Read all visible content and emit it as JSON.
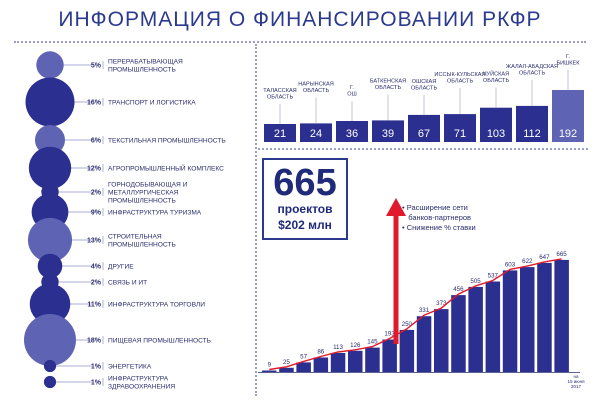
{
  "title": "ИНФОРМАЦИЯ О ФИНАНСИРОВАНИИ РКФР",
  "summary": {
    "projects_number": "665",
    "projects_label": "проектов",
    "amount_prefix": "$",
    "amount_value": "202",
    "amount_unit": "млн"
  },
  "notes": [
    "• Расширение сети",
    "   банков-партнеров",
    "• Снижение % ставки"
  ],
  "colors": {
    "dark": "#2b2f8f",
    "mid": "#5f63b3",
    "light": "#8f93cc",
    "arrow": "#e0192c",
    "accent": "#2b3a8f"
  },
  "chart_data": [
    {
      "type": "bubble",
      "categories": [
        "ПЕРЕРАБАТЫВАЮЩАЯ ПРОМЫШЛЕННОСТЬ",
        "ТРАНСПОРТ И ЛОГИСТИКА",
        "ТЕКСТИЛЬНАЯ ПРОМЫШЛЕННОСТЬ",
        "АГРОПРОМЫШЛЕННЫЙ КОМПЛЕКС",
        "ГОРНОДОБЫВАЮЩАЯ И МЕТАЛЛУРГИЧЕСКАЯ ПРОМЫШЛЕННОСТЬ",
        "ИНФРАСТРУКТУРА ТУРИЗМА",
        "СТРОИТЕЛЬНАЯ ПРОМЫШЛЕННОСТЬ",
        "ДРУГИЕ",
        "СВЯЗЬ И ИТ",
        "ИНФРАСТРУКТУРА ТОРГОВЛИ",
        "ПИЩЕВАЯ ПРОМЫШЛЕННОСТЬ",
        "ЭНЕРГЕТИКА",
        "ИНФРАСТРУКТУРА ЗДРАВООХРАНЕНИЯ"
      ],
      "labels": [
        "5%",
        "16%",
        "6%",
        "12%",
        "2%",
        "9%",
        "13%",
        "4%",
        "2%",
        "11%",
        "18%",
        "1%",
        "1%"
      ],
      "values": [
        5,
        16,
        6,
        12,
        2,
        9,
        13,
        4,
        2,
        11,
        18,
        1,
        1
      ]
    },
    {
      "type": "bar",
      "categories": [
        "ТАЛАССКАЯ ОБЛАСТЬ",
        "НАРЫНСКАЯ ОБЛАСТЬ",
        "Г. ОШ",
        "БАТКЕНСКАЯ ОБЛАСТЬ",
        "ОШСКАЯ ОБЛАСТЬ",
        "ИССЫК-КУЛЬСКАЯ ОБЛАСТЬ",
        "ЧУЙСКАЯ ОБЛАСТЬ",
        "ЖАЛАЛ-АБАДСКАЯ ОБЛАСТЬ",
        "Г. БИШКЕК"
      ],
      "values": [
        21,
        24,
        36,
        39,
        67,
        71,
        103,
        112,
        192
      ]
    },
    {
      "type": "bar",
      "values": [
        9,
        25,
        57,
        86,
        113,
        126,
        145,
        193,
        250,
        331,
        373,
        456,
        505,
        537,
        603,
        622,
        647,
        665
      ],
      "x_end_label": "на 15 июня 2017"
    }
  ]
}
